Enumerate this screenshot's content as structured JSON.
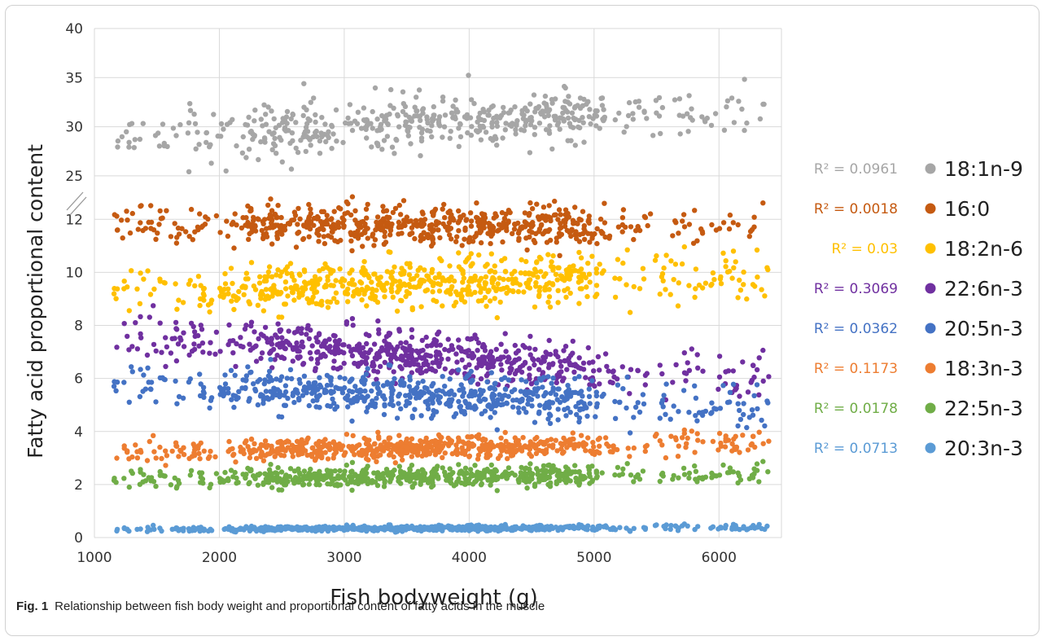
{
  "caption": {
    "label": "Fig. 1",
    "text": "Relationship between fish body weight and proportional content of fatty acids in the muscle"
  },
  "chart_data": {
    "type": "scatter",
    "xlabel": "Fish bodyweight (g)",
    "ylabel": "Fatty acid proportional content",
    "xlim": [
      1000,
      6500
    ],
    "x_ticks": [
      1000,
      2000,
      3000,
      4000,
      5000,
      6000
    ],
    "y_axis_break": true,
    "y_ticks_lower": [
      0,
      2,
      4,
      6,
      8,
      10,
      12
    ],
    "y_ticks_upper": [
      25,
      30,
      35,
      40
    ],
    "ylim_lower": [
      0,
      12.5
    ],
    "ylim_upper": [
      23,
      40
    ],
    "grid": true,
    "legend_position": "right",
    "series": [
      {
        "name": "18:1n-9",
        "r2_label": "R² = 0.0961",
        "color": "#a6a6a6",
        "axis": "upper",
        "mean_start": 29.0,
        "mean_end": 31.8,
        "spread": 1.3,
        "count": 520
      },
      {
        "name": "16:0",
        "r2_label": "R² = 0.0018",
        "color": "#c55a11",
        "axis": "lower",
        "mean_start": 11.8,
        "mean_end": 11.7,
        "spread": 0.35,
        "count": 620
      },
      {
        "name": "18:2n-6",
        "r2_label": "R² = 0.03",
        "color": "#ffc000",
        "axis": "lower",
        "mean_start": 9.3,
        "mean_end": 9.9,
        "spread": 0.45,
        "count": 620
      },
      {
        "name": "22:6n-3",
        "r2_label": "R² = 0.3069",
        "color": "#7030a0",
        "axis": "lower",
        "mean_start": 7.6,
        "mean_end": 6.0,
        "spread": 0.4,
        "count": 620
      },
      {
        "name": "20:5n-3",
        "r2_label": "R² = 0.0362",
        "color": "#4472c4",
        "axis": "lower",
        "mean_start": 5.8,
        "mean_end": 4.9,
        "spread": 0.4,
        "count": 620
      },
      {
        "name": "18:3n-3",
        "r2_label": "R² = 0.1173",
        "color": "#ed7d31",
        "axis": "lower",
        "mean_start": 3.2,
        "mean_end": 3.6,
        "spread": 0.2,
        "count": 620
      },
      {
        "name": "22:5n-3",
        "r2_label": "R² = 0.0178",
        "color": "#70ad47",
        "axis": "lower",
        "mean_start": 2.2,
        "mean_end": 2.4,
        "spread": 0.18,
        "count": 620
      },
      {
        "name": "20:3n-3",
        "r2_label": "R² = 0.0713",
        "color": "#5b9bd5",
        "axis": "lower",
        "mean_start": 0.3,
        "mean_end": 0.4,
        "spread": 0.05,
        "count": 620
      }
    ]
  }
}
